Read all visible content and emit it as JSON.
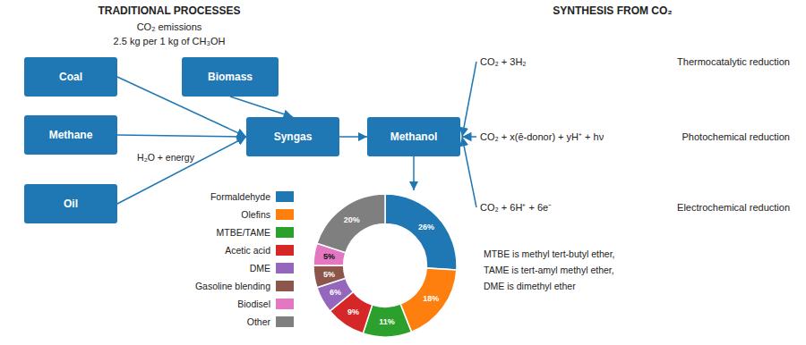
{
  "chart_data": {
    "type": "pie",
    "categories": [
      "Formaldehyde",
      "Olefins",
      "MTBE/TAME",
      "Acetic acid",
      "DME",
      "Gasoline blending",
      "Biodisel",
      "Other"
    ],
    "values": [
      26,
      18,
      11,
      9,
      6,
      5,
      5,
      20
    ],
    "value_labels": [
      "26%",
      "18%",
      "11%",
      "9%",
      "6%",
      "5%",
      "5%",
      "20%"
    ],
    "data_labels": true,
    "legend": "left",
    "annotations": [
      "TRADITIONAL PROCESSES",
      "CO₂ emissions",
      "2.5 kg per 1 kg of CH₃OH",
      "SYNTHESIS FROM CO₂",
      "Coal",
      "Methane",
      "Oil",
      "Biomass",
      "Syngas",
      "Methanol",
      "H₂O + energy",
      "CO₂ + 3H₂",
      "CO₂ + x(ē-donor) + yH⁺ + hν",
      "CO₂ + 6H⁺ + 6e⁻",
      "Thermocatalytic reduction",
      "Photochemical reduction",
      "Electrochemical reduction",
      "MTBE is methyl tert-butyl ether,",
      "TAME is tert-amyl methyl ether,",
      "DME is dimethyl ether"
    ]
  }
}
